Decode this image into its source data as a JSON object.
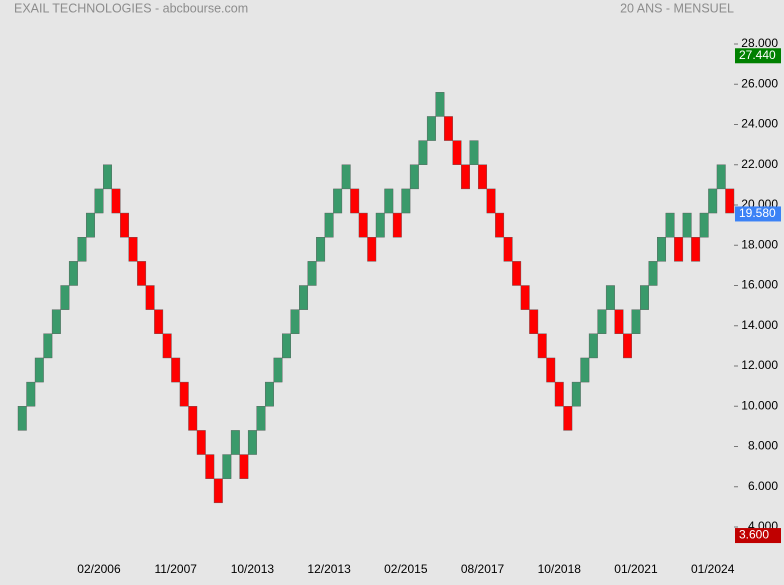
{
  "chart_data": {
    "type": "renko",
    "title": "EXAIL TECHNOLOGIES - abcbourse.com",
    "subtitle": "20 ANS - MENSUEL",
    "up_color": "#3a9a6b",
    "down_color": "#ff0000",
    "categories": [
      null,
      null,
      null,
      null,
      null,
      null,
      null,
      null,
      null,
      "02/2006",
      null,
      null,
      null,
      null,
      null,
      null,
      null,
      null,
      "11/2007",
      null,
      null,
      null,
      null,
      null,
      null,
      null,
      null,
      "10/2013",
      null,
      null,
      null,
      null,
      null,
      null,
      null,
      null,
      "12/2013",
      null,
      null,
      null,
      null,
      null,
      null,
      null,
      null,
      "02/2015",
      null,
      null,
      null,
      null,
      null,
      null,
      null,
      null,
      "08/2017",
      null,
      null,
      null,
      null,
      null,
      null,
      null,
      null,
      "10/2018",
      null,
      null,
      null,
      null,
      null,
      null,
      null,
      null,
      "01/2021",
      null,
      null,
      null,
      null,
      null,
      null,
      null,
      null,
      "01/2024",
      null,
      null
    ],
    "open": [
      8.8,
      10,
      11.2,
      12.4,
      13.6,
      14.8,
      16,
      17.2,
      18.4,
      19.6,
      20.8,
      20.8,
      19.6,
      18.4,
      17.2,
      16,
      14.8,
      13.6,
      12.4,
      11.2,
      10,
      8.8,
      7.6,
      6.4,
      6.4,
      7.6,
      7.6,
      7.6,
      8.8,
      10,
      11.2,
      12.4,
      13.6,
      14.8,
      16,
      17.2,
      18.4,
      19.6,
      20.8,
      20.8,
      19.6,
      18.4,
      18.4,
      19.6,
      19.6,
      19.6,
      20.8,
      22,
      23.2,
      24.4,
      24.4,
      23.2,
      22,
      22,
      22,
      20.8,
      19.6,
      18.4,
      17.2,
      16,
      14.8,
      13.6,
      12.4,
      11.2,
      10,
      10,
      11.2,
      12.4,
      13.6,
      14.8,
      14.8,
      13.6,
      13.6,
      14.8,
      16,
      17.2,
      18.4,
      18.4,
      18.4,
      18.4,
      18.4,
      19.6,
      20.8,
      20.8
    ],
    "close": [
      10,
      11.2,
      12.4,
      13.6,
      14.8,
      16,
      17.2,
      18.4,
      19.6,
      20.8,
      22,
      19.6,
      18.4,
      17.2,
      16,
      14.8,
      13.6,
      12.4,
      11.2,
      10,
      8.8,
      7.6,
      6.4,
      5.2,
      7.6,
      8.8,
      6.4,
      8.8,
      10,
      11.2,
      12.4,
      13.6,
      14.8,
      16,
      17.2,
      18.4,
      19.6,
      20.8,
      22,
      19.6,
      18.4,
      17.2,
      19.6,
      20.8,
      18.4,
      20.8,
      22,
      23.2,
      24.4,
      25.6,
      23.2,
      22,
      20.8,
      23.2,
      20.8,
      19.6,
      18.4,
      17.2,
      16,
      14.8,
      13.6,
      12.4,
      11.2,
      10,
      8.8,
      11.2,
      12.4,
      13.6,
      14.8,
      16,
      13.6,
      12.4,
      14.8,
      16,
      17.2,
      18.4,
      19.6,
      17.2,
      19.6,
      17.2,
      19.6,
      20.8,
      22,
      19.6
    ],
    "ylim": [
      4,
      28
    ],
    "yticks": [
      {
        "value": 4,
        "label": "4.000"
      },
      {
        "value": 6,
        "label": "6.000"
      },
      {
        "value": 8,
        "label": "8.000"
      },
      {
        "value": 10,
        "label": "10.000"
      },
      {
        "value": 12,
        "label": "12.000"
      },
      {
        "value": 14,
        "label": "14.000"
      },
      {
        "value": 16,
        "label": "16.000"
      },
      {
        "value": 18,
        "label": "18.000"
      },
      {
        "value": 20,
        "label": "20.000"
      },
      {
        "value": 22,
        "label": "22.000"
      },
      {
        "value": 24,
        "label": "24.000"
      },
      {
        "value": 26,
        "label": "26.000"
      },
      {
        "value": 28,
        "label": "28.000"
      }
    ],
    "markers": [
      {
        "value": 27.44,
        "label": "27.440",
        "color": "#008000"
      },
      {
        "value": 19.58,
        "label": "19.580",
        "color": "#3b82f6"
      },
      {
        "value": 3.6,
        "label": "3.600",
        "color": "#c00000"
      }
    ]
  }
}
